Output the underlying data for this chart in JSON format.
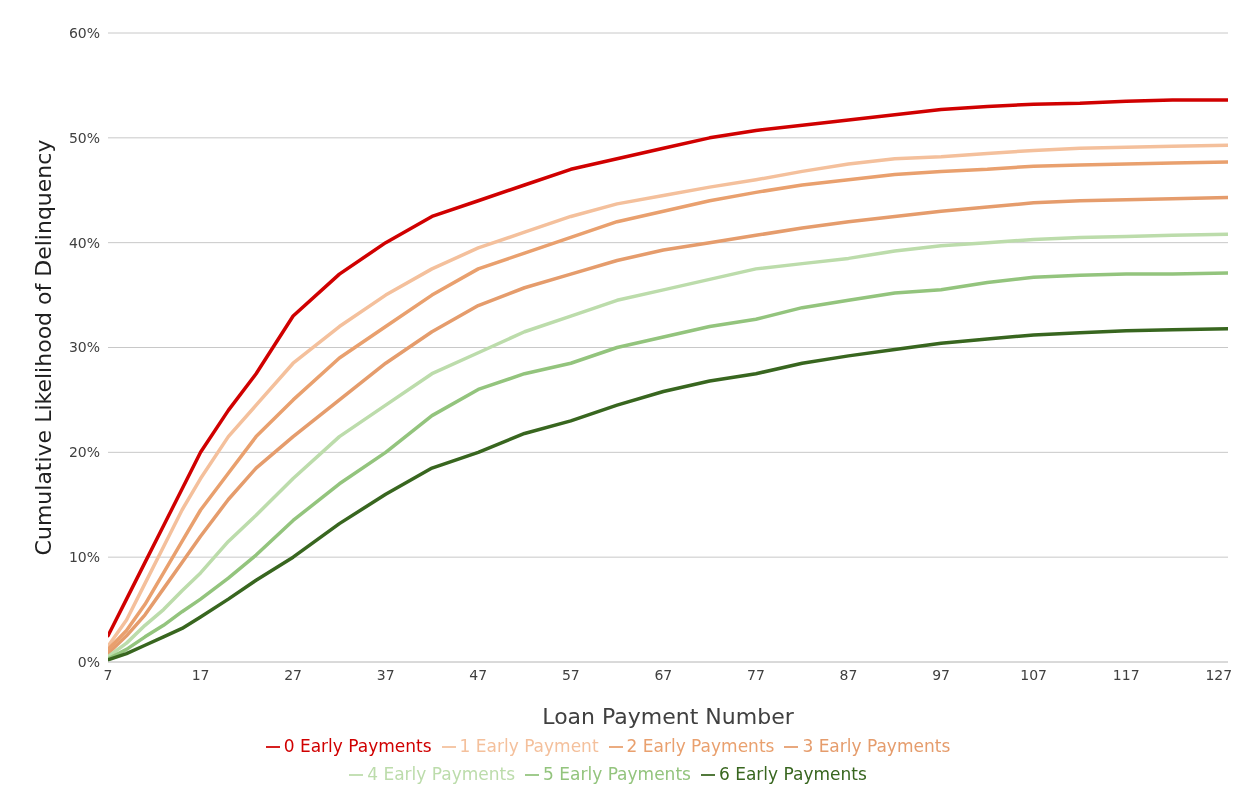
{
  "chart_data": {
    "type": "line",
    "xlabel": "Loan Payment Number",
    "ylabel": "Cumulative Likelihood of Delinquency",
    "x": [
      7,
      9,
      11,
      13,
      15,
      17,
      20,
      23,
      27,
      32,
      37,
      42,
      47,
      52,
      57,
      62,
      67,
      72,
      77,
      82,
      87,
      92,
      97,
      102,
      107,
      112,
      117,
      122,
      128
    ],
    "xlim": [
      7,
      128
    ],
    "xticks": [
      7,
      17,
      27,
      37,
      47,
      57,
      67,
      77,
      87,
      97,
      107,
      117,
      127
    ],
    "ylim": [
      0,
      60
    ],
    "yticks": [
      {
        "value": 0,
        "label": "0%"
      },
      {
        "value": 10,
        "label": "10%"
      },
      {
        "value": 20,
        "label": "20%"
      },
      {
        "value": 30,
        "label": "30%"
      },
      {
        "value": 40,
        "label": "40%"
      },
      {
        "value": 50,
        "label": "50%"
      },
      {
        "value": 60,
        "label": "60%"
      }
    ],
    "grid": "y",
    "legend": "bottom",
    "marker": "none",
    "line_style": "solid",
    "series": [
      {
        "name": "0 Early Payments",
        "color": "#d00000",
        "values": [
          2.5,
          6,
          9.5,
          13,
          16.5,
          20,
          24,
          27.5,
          33,
          37,
          40,
          42.5,
          44,
          45.5,
          47,
          48,
          49,
          50,
          50.7,
          51.2,
          51.7,
          52.2,
          52.7,
          53,
          53.2,
          53.3,
          53.5,
          53.6,
          53.6
        ]
      },
      {
        "name": "1 Early Payment",
        "color": "#f4c09c",
        "values": [
          1.5,
          4,
          7.5,
          11,
          14.5,
          17.5,
          21.5,
          24.5,
          28.5,
          32,
          35,
          37.5,
          39.5,
          41,
          42.5,
          43.7,
          44.5,
          45.3,
          46,
          46.8,
          47.5,
          48,
          48.2,
          48.5,
          48.8,
          49,
          49.1,
          49.2,
          49.3
        ]
      },
      {
        "name": "2 Early Payments",
        "color": "#e9a06e",
        "values": [
          1.2,
          3,
          5.5,
          8.5,
          11.5,
          14.5,
          18,
          21.5,
          25,
          29,
          32,
          35,
          37.5,
          39,
          40.5,
          42,
          43,
          44,
          44.8,
          45.5,
          46,
          46.5,
          46.8,
          47,
          47.3,
          47.4,
          47.5,
          47.6,
          47.7
        ]
      },
      {
        "name": "3 Early Payments",
        "color": "#e59c6c",
        "values": [
          0.8,
          2.5,
          4.5,
          7,
          9.5,
          12,
          15.5,
          18.5,
          21.5,
          25,
          28.5,
          31.5,
          34,
          35.7,
          37,
          38.3,
          39.3,
          40,
          40.7,
          41.4,
          42,
          42.5,
          43,
          43.4,
          43.8,
          44,
          44.1,
          44.2,
          44.3
        ]
      },
      {
        "name": "4 Early Payments",
        "color": "#bcdcab",
        "values": [
          0.5,
          1.8,
          3.5,
          5,
          6.8,
          8.5,
          11.5,
          14,
          17.5,
          21.5,
          24.5,
          27.5,
          29.5,
          31.5,
          33,
          34.5,
          35.5,
          36.5,
          37.5,
          38,
          38.5,
          39.2,
          39.7,
          40,
          40.3,
          40.5,
          40.6,
          40.7,
          40.8
        ]
      },
      {
        "name": "5 Early Payments",
        "color": "#93c47d",
        "values": [
          0.3,
          1.2,
          2.4,
          3.5,
          4.8,
          6,
          8,
          10.2,
          13.5,
          17,
          20,
          23.5,
          26,
          27.5,
          28.5,
          30,
          31,
          32,
          32.7,
          33.8,
          34.5,
          35.2,
          35.5,
          36.2,
          36.7,
          36.9,
          37,
          37,
          37.1
        ]
      },
      {
        "name": "6 Early Payments",
        "color": "#38661f",
        "values": [
          0.2,
          0.8,
          1.6,
          2.4,
          3.2,
          4.3,
          6,
          7.8,
          10,
          13.2,
          16,
          18.5,
          20,
          21.8,
          23,
          24.5,
          25.8,
          26.8,
          27.5,
          28.5,
          29.2,
          29.8,
          30.4,
          30.8,
          31.2,
          31.4,
          31.6,
          31.7,
          31.8
        ]
      }
    ]
  }
}
